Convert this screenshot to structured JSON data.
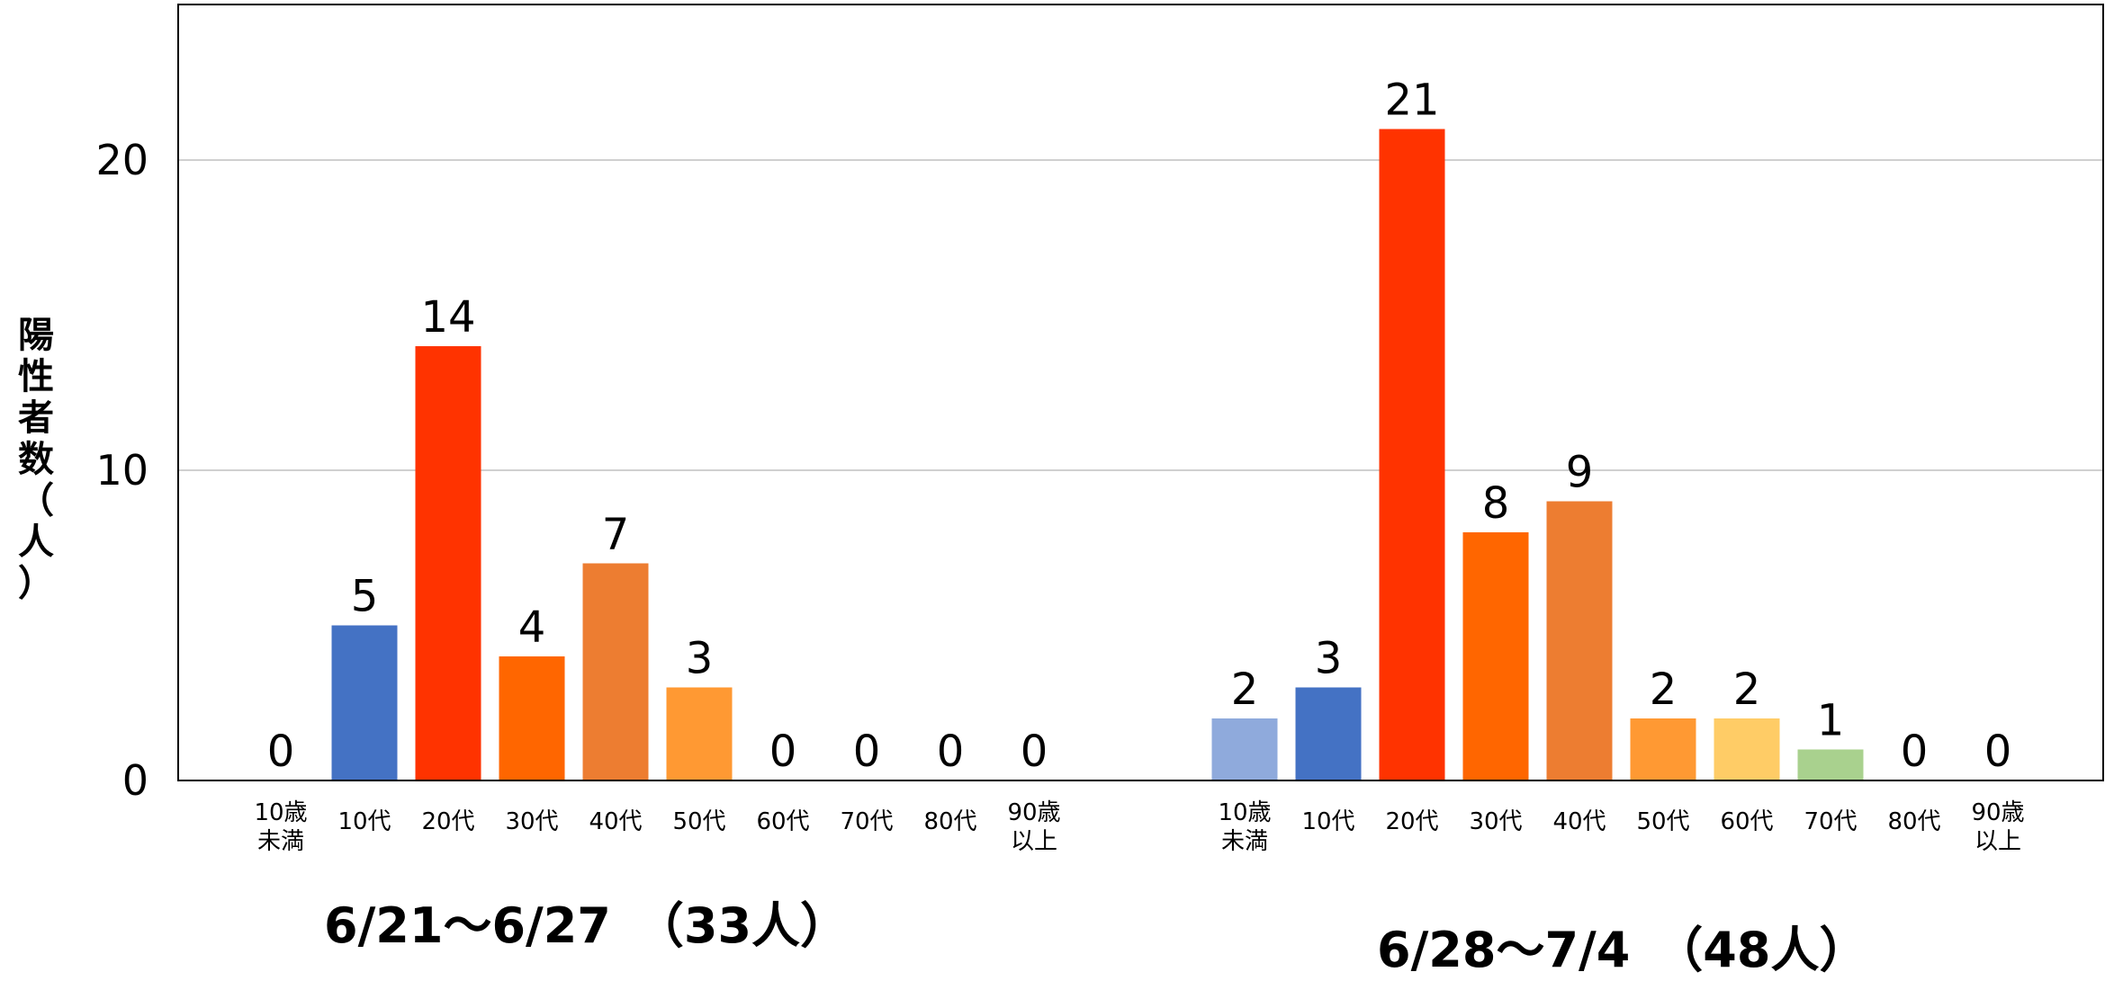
{
  "chart_data": {
    "type": "bar",
    "ylabel": "陽性者数（人）",
    "ylim": [
      0,
      25
    ],
    "yticks": [
      0,
      10,
      20
    ],
    "grid": true,
    "data_labels": true,
    "categories": [
      "10歳\n未満",
      "10代",
      "20代",
      "30代",
      "40代",
      "50代",
      "60代",
      "70代",
      "80代",
      "90歳\n以上"
    ],
    "colors": [
      "#8faadc",
      "#4472c4",
      "#ff3300",
      "#ff6600",
      "#ed7d31",
      "#ff9933",
      "#ffcc66",
      "#a9d18e",
      "#999999",
      "#999999"
    ],
    "groups": [
      {
        "name": "6/21～6/27　（33人）",
        "values": [
          0,
          5,
          14,
          4,
          7,
          3,
          0,
          0,
          0,
          0
        ]
      },
      {
        "name": "6/28～7/4　（48人）",
        "values": [
          2,
          3,
          21,
          8,
          9,
          2,
          2,
          1,
          0,
          0
        ]
      }
    ]
  }
}
